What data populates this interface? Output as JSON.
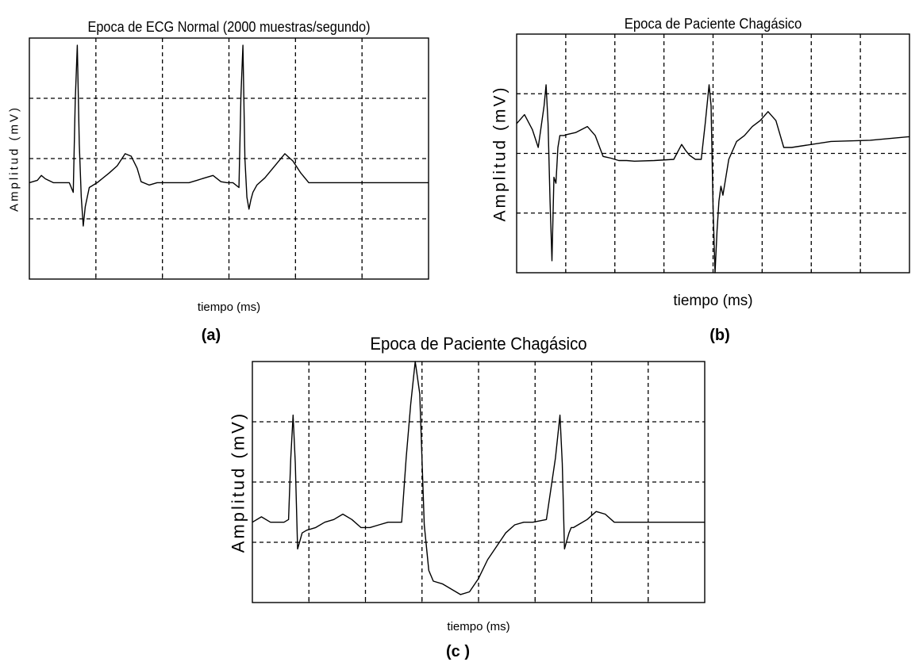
{
  "chart_data": [
    {
      "type": "line",
      "panel_label": "(a)",
      "title": "Epoca de ECG Normal (2000 muestras/segundo)",
      "xlabel": "tiempo (ms)",
      "ylabel": "Amplitud (mV)",
      "xlim": [
        0,
        1000
      ],
      "ylim": [
        -2,
        3
      ],
      "grid": true,
      "series": [
        {
          "x": [
            0,
            20,
            30,
            40,
            60,
            80,
            100,
            110,
            115,
            120,
            125,
            130,
            135,
            140,
            150,
            170,
            200,
            220,
            240,
            255,
            270,
            280,
            300,
            320,
            340,
            360,
            380,
            400,
            420,
            440,
            460,
            480,
            495,
            510,
            525,
            530,
            535,
            540,
            545,
            550,
            555,
            560,
            570,
            590,
            620,
            640,
            660,
            680,
            700,
            720,
            740,
            760,
            780,
            800,
            820,
            840,
            860,
            880,
            900,
            920,
            950,
            1000
          ],
          "y": [
            0,
            0.05,
            0.15,
            0.08,
            0,
            0,
            0,
            -0.2,
            1.7,
            2.85,
            0.8,
            -0.3,
            -0.9,
            -0.5,
            -0.1,
            0,
            0.2,
            0.35,
            0.6,
            0.55,
            0.3,
            0.02,
            -0.05,
            0,
            0,
            0,
            0,
            0,
            0.05,
            0.1,
            0.15,
            0.02,
            0,
            0,
            -0.1,
            1.8,
            2.85,
            0.5,
            -0.3,
            -0.55,
            -0.35,
            -0.2,
            -0.05,
            0.1,
            0.4,
            0.6,
            0.45,
            0.2,
            0,
            0,
            0,
            0,
            0,
            0,
            0,
            0,
            0,
            0,
            0,
            0,
            0,
            0
          ]
        }
      ]
    },
    {
      "type": "line",
      "panel_label": "(b)",
      "title": "Epoca de Paciente Chagásico",
      "xlabel": "tiempo (ms)",
      "ylabel": "Amplitud (mV)",
      "xlim": [
        0,
        1000
      ],
      "ylim": [
        -2,
        2
      ],
      "grid": true,
      "series": [
        {
          "x": [
            0,
            20,
            40,
            55,
            70,
            75,
            80,
            85,
            90,
            95,
            100,
            105,
            110,
            120,
            130,
            150,
            180,
            200,
            220,
            240,
            250,
            260,
            280,
            300,
            350,
            400,
            420,
            430,
            440,
            455,
            470,
            480,
            490,
            495,
            500,
            505,
            510,
            515,
            520,
            525,
            530,
            540,
            560,
            580,
            600,
            620,
            640,
            660,
            680,
            700,
            800,
            900,
            1000
          ],
          "y": [
            0.5,
            0.65,
            0.4,
            0.1,
            0.8,
            1.15,
            0.5,
            -0.8,
            -1.8,
            -0.4,
            -0.5,
            0.1,
            0.3,
            0.3,
            0.32,
            0.35,
            0.45,
            0.3,
            -0.05,
            -0.08,
            -0.1,
            -0.12,
            -0.12,
            -0.13,
            -0.12,
            -0.1,
            0.15,
            0.05,
            -0.03,
            -0.1,
            -0.1,
            0.5,
            1.15,
            0.8,
            -0.9,
            -2,
            -1.3,
            -0.8,
            -0.55,
            -0.7,
            -0.5,
            -0.1,
            0.2,
            0.3,
            0.45,
            0.55,
            0.7,
            0.55,
            0.1,
            0.1,
            0.2,
            0.22,
            0.28
          ]
        }
      ]
    },
    {
      "type": "line",
      "panel_label": "(c )",
      "title": "Epoca de Paciente Chagásico",
      "xlabel": "tiempo (ms)",
      "ylabel": "Amplitud (mV)",
      "xlim": [
        0,
        1000
      ],
      "ylim": [
        -1.5,
        3
      ],
      "grid": true,
      "series": [
        {
          "x": [
            0,
            20,
            40,
            60,
            70,
            80,
            85,
            90,
            95,
            100,
            105,
            110,
            120,
            140,
            160,
            180,
            200,
            220,
            240,
            260,
            280,
            300,
            330,
            340,
            350,
            360,
            370,
            380,
            390,
            400,
            420,
            440,
            460,
            480,
            500,
            520,
            540,
            560,
            580,
            600,
            620,
            650,
            670,
            680,
            685,
            690,
            695,
            700,
            705,
            710,
            720,
            740,
            760,
            780,
            800,
            820,
            840,
            900,
            1000
          ],
          "y": [
            0,
            0.1,
            0,
            0,
            0,
            0.05,
            1.2,
            2,
            1.1,
            -0.5,
            -0.35,
            -0.2,
            -0.15,
            -0.1,
            0,
            0.05,
            0.15,
            0.05,
            -0.1,
            -0.1,
            -0.05,
            0,
            0,
            1.2,
            2.2,
            3,
            2.4,
            -0.05,
            -0.9,
            -1.1,
            -1.15,
            -1.25,
            -1.35,
            -1.3,
            -1.05,
            -0.7,
            -0.45,
            -0.2,
            -0.05,
            0,
            0,
            0.05,
            1.2,
            2,
            1.1,
            -0.5,
            -0.35,
            -0.2,
            -0.1,
            -0.1,
            -0.05,
            0.05,
            0.2,
            0.15,
            0,
            0,
            0,
            0,
            0
          ]
        }
      ]
    }
  ]
}
